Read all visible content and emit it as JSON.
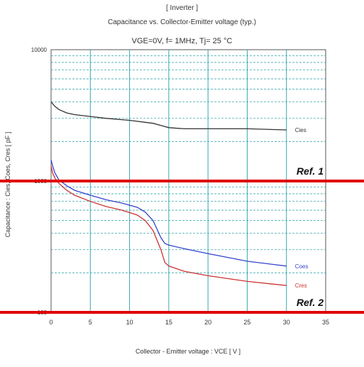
{
  "header": {
    "line1": "[ Inverter ]",
    "line2": "Capacitance  vs.  Collector-Emitter voltage  (typ.)",
    "line3": "VGE=0V,  f= 1MHz,  Tj= 25 °C"
  },
  "chart_data": {
    "type": "line",
    "title": "Capacitance vs. Collector-Emitter voltage (typ.)",
    "xlabel": "Collector - Emitter voltage  :  VCE  [ V ]",
    "ylabel": "Capacitance  :  Cies, Coes, Cres  [ pF ]",
    "xlim": [
      0,
      35
    ],
    "ylim": [
      100,
      10000
    ],
    "yscale": "log",
    "grid": true,
    "x_ticks": [
      "0",
      "5",
      "10",
      "15",
      "20",
      "25",
      "30",
      "35"
    ],
    "y_ticks": [
      "100",
      "1000",
      "10000"
    ],
    "series": [
      {
        "name": "Cies",
        "color": "#333333",
        "x": [
          0,
          0.5,
          1,
          2,
          3,
          5,
          7,
          10,
          12,
          13,
          14,
          15,
          17,
          20,
          25,
          30
        ],
        "y": [
          4000,
          3700,
          3500,
          3300,
          3200,
          3100,
          3000,
          2900,
          2800,
          2750,
          2650,
          2550,
          2500,
          2500,
          2500,
          2450
        ]
      },
      {
        "name": "Coes",
        "color": "#3344cc",
        "x": [
          0,
          0.2,
          0.5,
          1,
          2,
          3,
          5,
          7,
          9,
          11,
          12,
          13,
          14,
          14.5,
          15,
          17,
          20,
          25,
          30
        ],
        "y": [
          1450,
          1300,
          1150,
          1020,
          920,
          850,
          780,
          720,
          680,
          630,
          580,
          500,
          370,
          335,
          325,
          305,
          280,
          245,
          225
        ]
      },
      {
        "name": "Cres",
        "color": "#cc3333",
        "x": [
          0,
          0.2,
          0.5,
          1,
          2,
          3,
          5,
          7,
          9,
          11,
          12,
          13,
          14,
          14.5,
          15,
          17,
          20,
          25,
          30
        ],
        "y": [
          1300,
          1150,
          1050,
          960,
          850,
          780,
          700,
          640,
          600,
          550,
          500,
          420,
          300,
          240,
          225,
          205,
          190,
          172,
          160
        ]
      }
    ],
    "annotations": [
      {
        "text": "Ref. 1",
        "y": 1000,
        "color": "#e00000"
      },
      {
        "text": "Ref. 2",
        "y": 100,
        "color": "#e00000"
      }
    ]
  }
}
